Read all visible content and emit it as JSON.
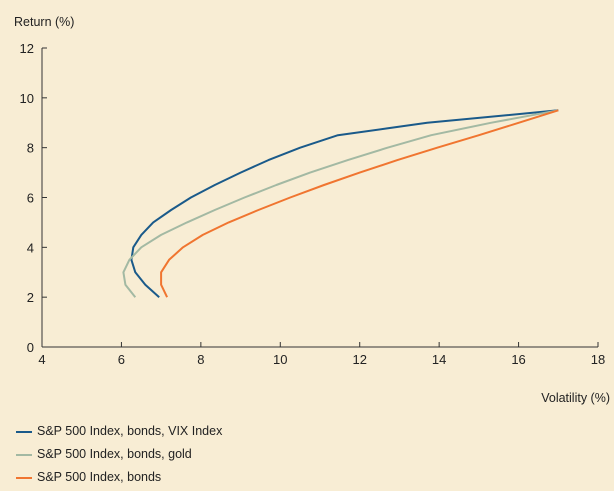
{
  "chart_data": {
    "type": "line",
    "ylabel": "Return (%)",
    "xlabel": "Volatility (%)",
    "xlim": [
      4,
      18
    ],
    "ylim": [
      0,
      12
    ],
    "xticks": [
      4,
      6,
      8,
      10,
      12,
      14,
      16,
      18
    ],
    "yticks": [
      0,
      2,
      4,
      6,
      8,
      10,
      12
    ],
    "grid": false,
    "legend_position": "bottom-left",
    "series": [
      {
        "name": "S&P 500 Index, bonds, VIX Index",
        "color": "#1a5a8a",
        "points": [
          [
            6.95,
            2.0
          ],
          [
            6.6,
            2.5
          ],
          [
            6.35,
            3.0
          ],
          [
            6.25,
            3.5
          ],
          [
            6.3,
            4.0
          ],
          [
            6.5,
            4.5
          ],
          [
            6.8,
            5.0
          ],
          [
            7.25,
            5.5
          ],
          [
            7.75,
            6.0
          ],
          [
            8.35,
            6.5
          ],
          [
            9.0,
            7.0
          ],
          [
            9.7,
            7.5
          ],
          [
            10.5,
            8.0
          ],
          [
            11.45,
            8.5
          ],
          [
            13.7,
            9.0
          ],
          [
            17.0,
            9.5
          ]
        ]
      },
      {
        "name": "S&P 500 Index, bonds, gold",
        "color": "#a3b9a3",
        "points": [
          [
            6.35,
            2.0
          ],
          [
            6.1,
            2.5
          ],
          [
            6.05,
            3.0
          ],
          [
            6.2,
            3.5
          ],
          [
            6.5,
            4.0
          ],
          [
            7.0,
            4.5
          ],
          [
            7.65,
            5.0
          ],
          [
            8.35,
            5.5
          ],
          [
            9.1,
            6.0
          ],
          [
            9.9,
            6.5
          ],
          [
            10.75,
            7.0
          ],
          [
            11.7,
            7.5
          ],
          [
            12.7,
            8.0
          ],
          [
            13.8,
            8.5
          ],
          [
            15.3,
            9.0
          ],
          [
            17.0,
            9.5
          ]
        ]
      },
      {
        "name": "S&P 500 Index, bonds",
        "color": "#f07530",
        "points": [
          [
            7.15,
            2.0
          ],
          [
            7.0,
            2.5
          ],
          [
            7.0,
            3.0
          ],
          [
            7.2,
            3.5
          ],
          [
            7.55,
            4.0
          ],
          [
            8.05,
            4.5
          ],
          [
            8.7,
            5.0
          ],
          [
            9.45,
            5.5
          ],
          [
            10.25,
            6.0
          ],
          [
            11.1,
            6.5
          ],
          [
            12.0,
            7.0
          ],
          [
            12.95,
            7.5
          ],
          [
            13.95,
            8.0
          ],
          [
            15.0,
            8.5
          ],
          [
            16.0,
            9.0
          ],
          [
            17.0,
            9.5
          ]
        ]
      }
    ]
  }
}
